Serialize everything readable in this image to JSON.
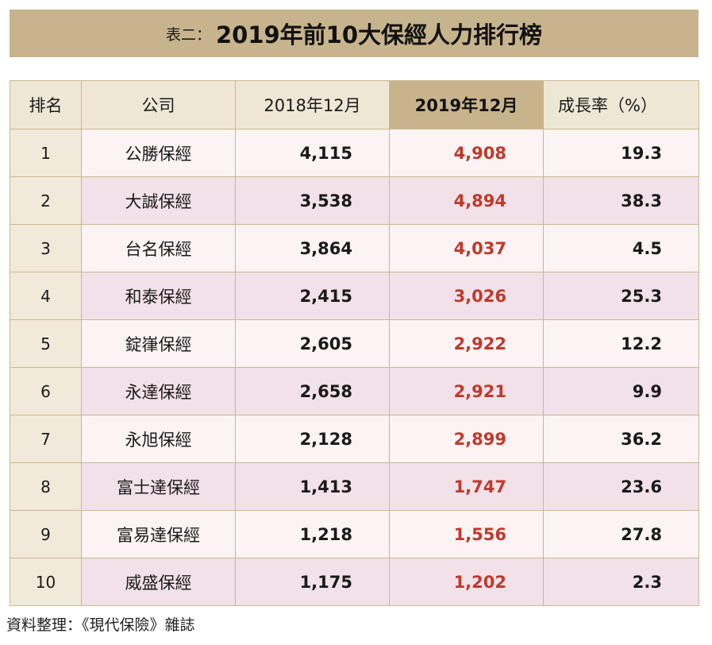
{
  "title": {
    "prefix": "表二：",
    "main": "2019年前10大保經人力排行榜"
  },
  "table": {
    "headers": {
      "rank": "排名",
      "company": "公司",
      "y2018": "2018年12月",
      "y2019": "2019年12月",
      "growth": "成長率（%）"
    },
    "rows": [
      {
        "rank": "1",
        "company": "公勝保經",
        "y2018": "4,115",
        "y2019": "4,908",
        "growth": "19.3"
      },
      {
        "rank": "2",
        "company": "大誠保經",
        "y2018": "3,538",
        "y2019": "4,894",
        "growth": "38.3"
      },
      {
        "rank": "3",
        "company": "台名保經",
        "y2018": "3,864",
        "y2019": "4,037",
        "growth": "4.5"
      },
      {
        "rank": "4",
        "company": "和泰保經",
        "y2018": "2,415",
        "y2019": "3,026",
        "growth": "25.3"
      },
      {
        "rank": "5",
        "company": "錠嵂保經",
        "y2018": "2,605",
        "y2019": "2,922",
        "growth": "12.2"
      },
      {
        "rank": "6",
        "company": "永達保經",
        "y2018": "2,658",
        "y2019": "2,921",
        "growth": "9.9"
      },
      {
        "rank": "7",
        "company": "永旭保經",
        "y2018": "2,128",
        "y2019": "2,899",
        "growth": "36.2"
      },
      {
        "rank": "8",
        "company": "富士達保經",
        "y2018": "1,413",
        "y2019": "1,747",
        "growth": "23.6"
      },
      {
        "rank": "9",
        "company": "富易達保經",
        "y2018": "1,218",
        "y2019": "1,556",
        "growth": "27.8"
      },
      {
        "rank": "10",
        "company": "威盛保經",
        "y2018": "1,175",
        "y2019": "1,202",
        "growth": "2.3"
      }
    ]
  },
  "source": "資料整理：《現代保險》雜誌",
  "colors": {
    "title_bar": "#c7b48c",
    "highlight_values": "#c0392b",
    "row_light": "#fbf3f4",
    "row_pink": "#f2e1e8"
  }
}
